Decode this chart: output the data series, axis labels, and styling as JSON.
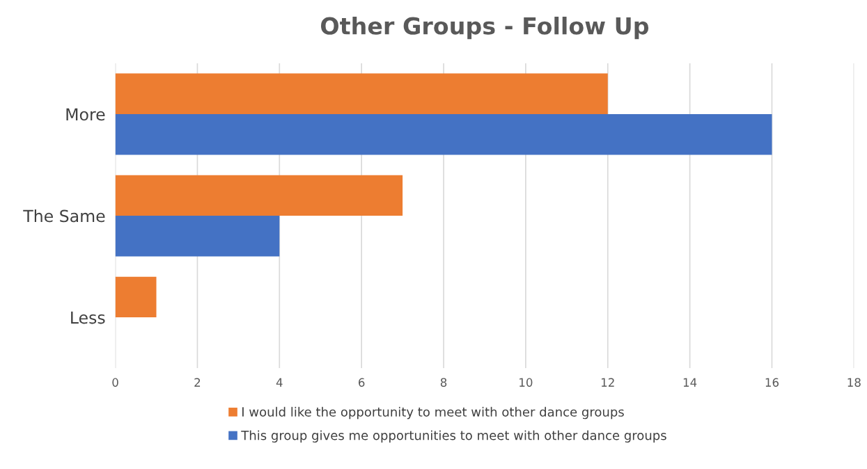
{
  "chart_data": {
    "type": "bar",
    "orientation": "horizontal",
    "title": "Other Groups - Follow Up",
    "categories": [
      "More",
      "The Same",
      "Less"
    ],
    "series": [
      {
        "name": "I would like the opportunity to meet with other dance groups",
        "color": "#ed7d31",
        "values": [
          12,
          7,
          1
        ]
      },
      {
        "name": "This group gives me opportunities to meet with other dance groups",
        "color": "#4472c4",
        "values": [
          16,
          4,
          0
        ]
      }
    ],
    "xlim": [
      0,
      18
    ],
    "xticks": [
      0,
      2,
      4,
      6,
      8,
      10,
      12,
      14,
      16,
      18
    ],
    "grid": "x",
    "legend": "bottom"
  }
}
